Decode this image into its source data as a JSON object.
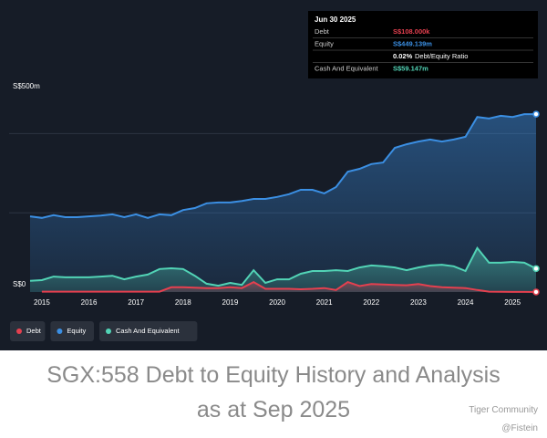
{
  "chart_data": {
    "type": "area",
    "x": [
      2014.75,
      2015,
      2015.25,
      2015.5,
      2015.75,
      2016,
      2016.25,
      2016.5,
      2016.75,
      2017,
      2017.25,
      2017.5,
      2017.75,
      2018,
      2018.25,
      2018.5,
      2018.75,
      2019,
      2019.25,
      2019.5,
      2019.75,
      2020,
      2020.25,
      2020.5,
      2020.75,
      2021,
      2021.25,
      2021.5,
      2021.75,
      2022,
      2022.25,
      2022.5,
      2022.75,
      2023,
      2023.25,
      2023.5,
      2023.75,
      2024,
      2024.25,
      2024.5,
      2024.75,
      2025,
      2025.25,
      2025.5
    ],
    "series": [
      {
        "name": "Debt",
        "color": "#e5404f",
        "values": [
          null,
          1,
          1,
          1,
          1,
          1,
          1,
          1,
          1,
          1,
          1,
          1,
          12,
          12,
          11,
          10,
          10,
          12,
          10,
          25,
          8,
          8,
          8,
          7,
          8,
          10,
          5,
          25,
          15,
          20,
          19,
          18,
          17,
          20,
          15,
          12,
          11,
          10,
          5,
          1,
          0.5,
          0.3,
          0.2,
          0.108
        ]
      },
      {
        "name": "Equity",
        "color": "#3b8fe3",
        "values": [
          191,
          187,
          194,
          189,
          189,
          191,
          193,
          196,
          189,
          196,
          187,
          196,
          194,
          207,
          212,
          224,
          226,
          226,
          230,
          235,
          235,
          240,
          247,
          258,
          258,
          249,
          265,
          304,
          311,
          323,
          327,
          364,
          373,
          380,
          385,
          380,
          385,
          392,
          442,
          438,
          445,
          442,
          449,
          449.139
        ]
      },
      {
        "name": "Cash And Equivalent",
        "color": "#52d4b6",
        "values": [
          28,
          30,
          39,
          37,
          37,
          37,
          39,
          41,
          32,
          39,
          44,
          58,
          60,
          58,
          41,
          21,
          16,
          23,
          18,
          55,
          23,
          32,
          32,
          46,
          53,
          53,
          55,
          53,
          62,
          67,
          65,
          62,
          55,
          62,
          67,
          69,
          65,
          53,
          111,
          74,
          74,
          76,
          74,
          59.147
        ]
      }
    ],
    "xlim": [
      2014.75,
      2025.5
    ],
    "xticks": [
      2015,
      2016,
      2017,
      2018,
      2019,
      2020,
      2021,
      2022,
      2023,
      2024,
      2025
    ],
    "ylim": [
      0,
      500
    ],
    "yticks": [
      {
        "value": 0,
        "label": "S$0"
      },
      {
        "value": 200,
        "label": null
      },
      {
        "value": 400,
        "label": null
      },
      {
        "value": 500,
        "label": "S$500m"
      }
    ],
    "grid": true,
    "tooltip": {
      "date": "Jun 30 2025",
      "rows": [
        [
          "Debt",
          "S$108.000k"
        ],
        [
          "Equity",
          "S$449.139m"
        ],
        [
          "0.02%",
          "Debt/Equity Ratio"
        ],
        [
          "Cash And Equivalent",
          "S$59.147m"
        ]
      ]
    }
  },
  "caption": "SGX:558 Debt to Equity History and Analysis as at Sep 2025",
  "watermark": {
    "brand": "Tiger Community",
    "user": "@Fistein"
  }
}
